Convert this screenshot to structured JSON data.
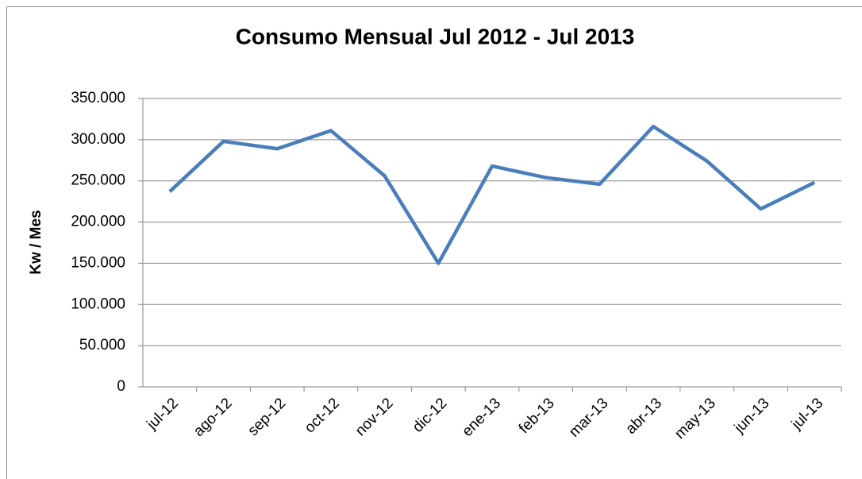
{
  "chart_data": {
    "type": "line",
    "title": "Consumo Mensual Jul 2012 - Jul 2013",
    "y_label": "Kw / Mes",
    "categories": [
      "jul-12",
      "ago-12",
      "sep-12",
      "oct-12",
      "nov-12",
      "dic-12",
      "ene-13",
      "feb-13",
      "mar-13",
      "abr-13",
      "may-13",
      "jun-13",
      "jul-13"
    ],
    "values": [
      237000,
      298000,
      289000,
      311000,
      256000,
      150000,
      268000,
      254000,
      246000,
      316000,
      274000,
      216000,
      248000
    ],
    "color": "#4a7ebb",
    "ylim": [
      0,
      350000
    ],
    "yticks": [
      0,
      {
        "value": 50000,
        "label": "50.000"
      },
      {
        "value": 100000,
        "label": "100.000"
      },
      {
        "value": 150000,
        "label": "150.000"
      },
      {
        "value": 200000,
        "label": "200.000"
      },
      {
        "value": 250000,
        "label": "250.000"
      },
      {
        "value": 300000,
        "label": "300.000"
      },
      {
        "value": 350000,
        "label": "350.000"
      }
    ],
    "grid": true
  }
}
